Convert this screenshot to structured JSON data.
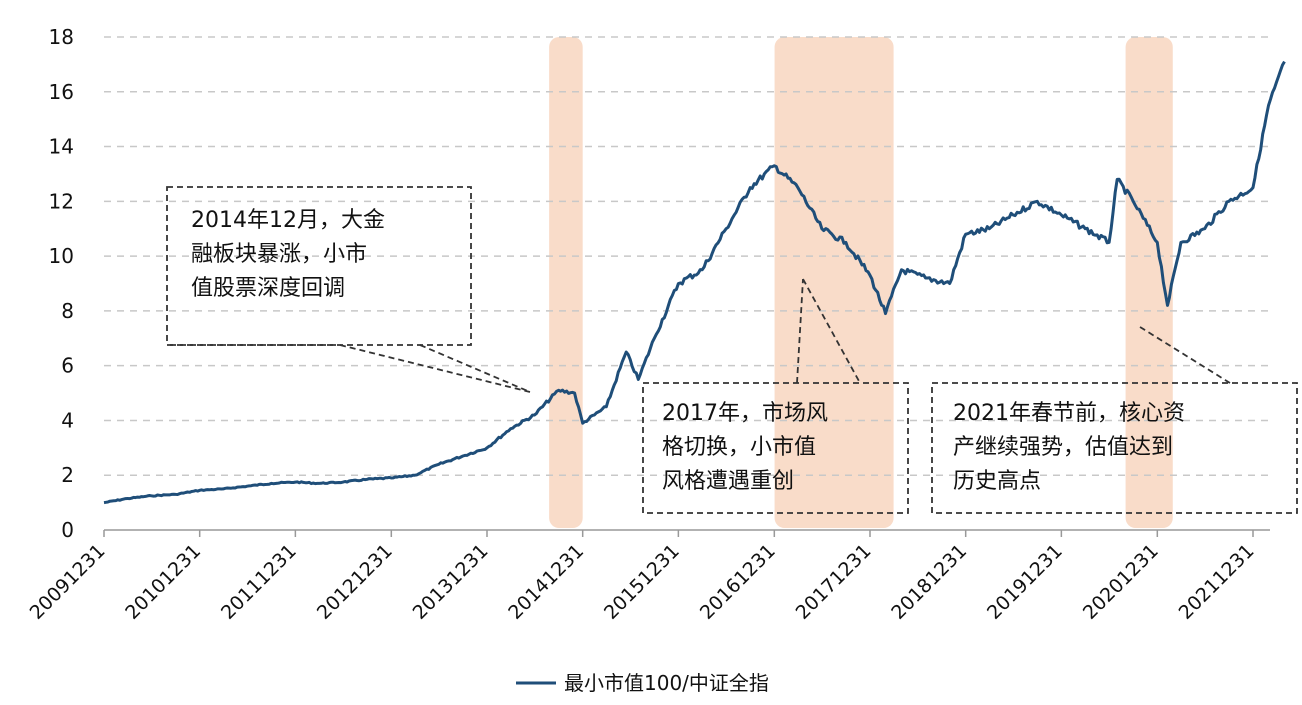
{
  "chart_data": {
    "type": "line",
    "title": "",
    "xlabel": "",
    "ylabel": "",
    "ylim": [
      0,
      18
    ],
    "y_ticks": [
      "0",
      "2",
      "4",
      "6",
      "8",
      "10",
      "12",
      "14",
      "16",
      "18"
    ],
    "x_ticks": [
      "20091231",
      "20101231",
      "20111231",
      "20121231",
      "20131231",
      "20141231",
      "20151231",
      "20161231",
      "20171231",
      "20181231",
      "20191231",
      "20201231",
      "20211231"
    ],
    "grid": "horizontal dashed",
    "legend_position": "bottom",
    "series": [
      {
        "name": "最小市值100/中证全指",
        "color": "#1f4e79",
        "points": [
          [
            "2009-12-31",
            1.0
          ],
          [
            "2010-03-31",
            1.15
          ],
          [
            "2010-06-30",
            1.25
          ],
          [
            "2010-09-30",
            1.3
          ],
          [
            "2010-12-31",
            1.45
          ],
          [
            "2011-03-31",
            1.5
          ],
          [
            "2011-06-30",
            1.6
          ],
          [
            "2011-09-30",
            1.7
          ],
          [
            "2011-12-31",
            1.75
          ],
          [
            "2012-03-31",
            1.7
          ],
          [
            "2012-06-30",
            1.75
          ],
          [
            "2012-09-30",
            1.85
          ],
          [
            "2012-12-31",
            1.9
          ],
          [
            "2013-03-31",
            2.0
          ],
          [
            "2013-06-30",
            2.4
          ],
          [
            "2013-09-30",
            2.7
          ],
          [
            "2013-12-31",
            3.0
          ],
          [
            "2014-03-31",
            3.7
          ],
          [
            "2014-06-30",
            4.2
          ],
          [
            "2014-09-30",
            5.1
          ],
          [
            "2014-11-30",
            5.0
          ],
          [
            "2014-12-31",
            3.9
          ],
          [
            "2015-03-31",
            4.5
          ],
          [
            "2015-06-15",
            6.5
          ],
          [
            "2015-07-31",
            5.5
          ],
          [
            "2015-09-30",
            7.0
          ],
          [
            "2015-12-31",
            9.0
          ],
          [
            "2016-03-31",
            9.5
          ],
          [
            "2016-06-30",
            11.0
          ],
          [
            "2016-09-30",
            12.5
          ],
          [
            "2016-12-31",
            13.3
          ],
          [
            "2017-03-31",
            12.5
          ],
          [
            "2017-06-30",
            11.0
          ],
          [
            "2017-09-30",
            10.5
          ],
          [
            "2017-12-31",
            9.3
          ],
          [
            "2018-02-28",
            7.9
          ],
          [
            "2018-04-30",
            9.5
          ],
          [
            "2018-07-31",
            9.2
          ],
          [
            "2018-10-31",
            9.0
          ],
          [
            "2018-12-31",
            10.8
          ],
          [
            "2019-03-31",
            11.0
          ],
          [
            "2019-06-30",
            11.5
          ],
          [
            "2019-09-30",
            12.0
          ],
          [
            "2019-12-31",
            11.5
          ],
          [
            "2020-03-31",
            11.0
          ],
          [
            "2020-06-30",
            10.5
          ],
          [
            "2020-07-31",
            12.8
          ],
          [
            "2020-09-30",
            12.0
          ],
          [
            "2020-12-31",
            10.5
          ],
          [
            "2021-02-08",
            8.2
          ],
          [
            "2021-03-31",
            10.5
          ],
          [
            "2021-06-30",
            11.0
          ],
          [
            "2021-09-30",
            12.0
          ],
          [
            "2021-12-31",
            12.5
          ],
          [
            "2022-02-28",
            15.5
          ],
          [
            "2022-04-30",
            17.1
          ]
        ]
      }
    ],
    "highlight_periods": [
      [
        "2014-08-25",
        "2014-12-31"
      ],
      [
        "2017-01-01",
        "2018-03-31"
      ],
      [
        "2020-09-01",
        "2021-02-28"
      ]
    ],
    "annotations": [
      {
        "lines": [
          "2014年12月，大金",
          "融板块暴涨，小市",
          "值股票深度回调"
        ]
      },
      {
        "lines": [
          "2017年，市场风",
          "格切换，小市值",
          "风格遭遇重创"
        ]
      },
      {
        "lines": [
          "2021年春节前，核心资",
          "产继续强势，估值达到",
          "历史高点"
        ]
      }
    ],
    "colors": {
      "line": "#1f4e79",
      "highlight": "#f9dcc9",
      "grid": "#c8c8c8",
      "axis": "#999999",
      "annotation_border": "#333333"
    }
  }
}
